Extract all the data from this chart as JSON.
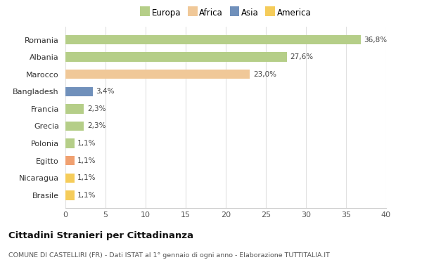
{
  "categories": [
    "Brasile",
    "Nicaragua",
    "Egitto",
    "Polonia",
    "Grecia",
    "Francia",
    "Bangladesh",
    "Marocco",
    "Albania",
    "Romania"
  ],
  "values": [
    1.1,
    1.1,
    1.1,
    1.1,
    2.3,
    2.3,
    3.4,
    23.0,
    27.6,
    36.8
  ],
  "labels": [
    "1,1%",
    "1,1%",
    "1,1%",
    "1,1%",
    "2,3%",
    "2,3%",
    "3,4%",
    "23,0%",
    "27,6%",
    "36,8%"
  ],
  "colors": [
    "#f5cc5a",
    "#f5cc5a",
    "#f0a070",
    "#b5ce88",
    "#b5ce88",
    "#b5ce88",
    "#7090bb",
    "#f0c898",
    "#b5ce88",
    "#b5ce88"
  ],
  "legend_labels": [
    "Europa",
    "Africa",
    "Asia",
    "America"
  ],
  "legend_colors": [
    "#b5ce88",
    "#f0c898",
    "#7090bb",
    "#f5cc5a"
  ],
  "title": "Cittadini Stranieri per Cittadinanza",
  "subtitle": "COMUNE DI CASTELLIRI (FR) - Dati ISTAT al 1° gennaio di ogni anno - Elaborazione TUTTITALIA.IT",
  "xlim": [
    0,
    40
  ],
  "xticks": [
    0,
    5,
    10,
    15,
    20,
    25,
    30,
    35,
    40
  ],
  "background_color": "#ffffff",
  "grid_color": "#e0e0e0",
  "bar_height": 0.55
}
